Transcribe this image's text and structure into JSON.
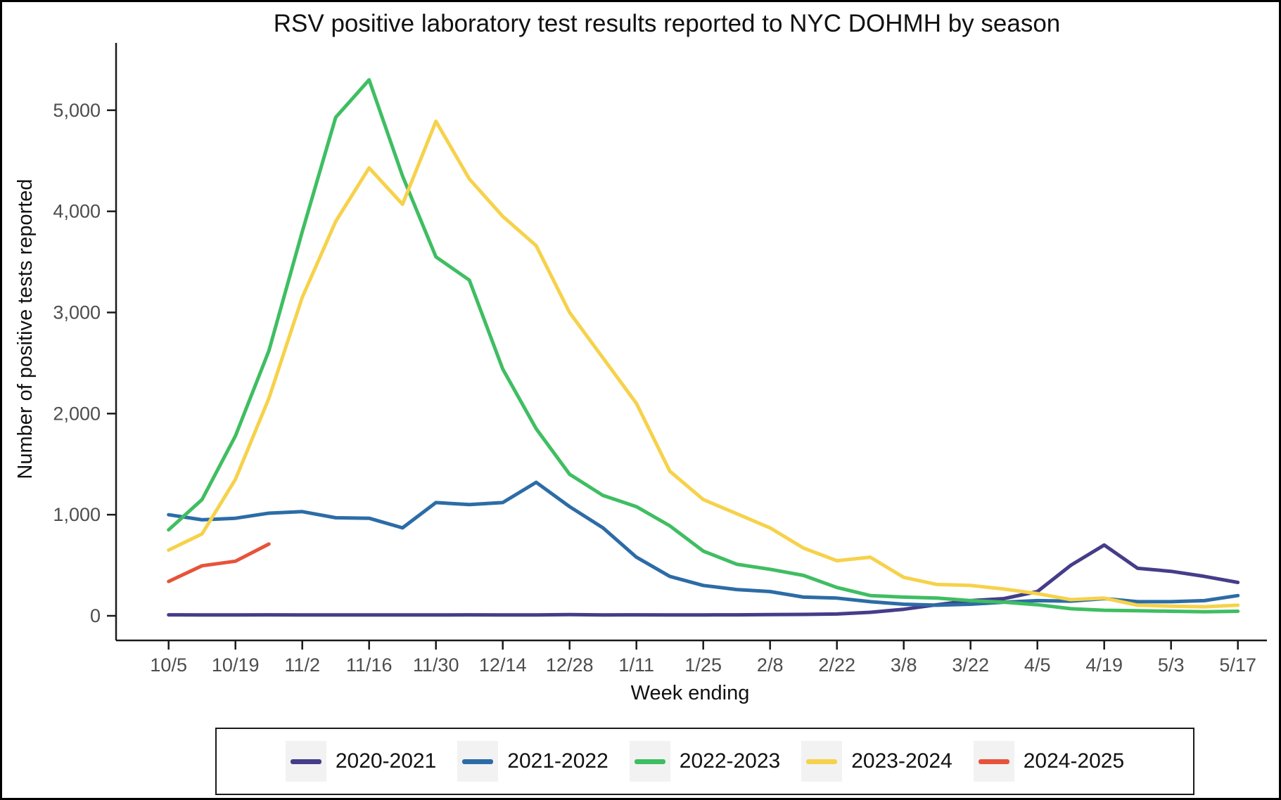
{
  "title": "RSV positive laboratory test results reported to NYC DOHMH by season",
  "chart_data": {
    "type": "line",
    "title": "RSV positive laboratory test results reported to NYC DOHMH by season",
    "xlabel": "Week ending",
    "ylabel": "Number of positive tests reported",
    "legend_position": "bottom",
    "grid": false,
    "ylim": [
      0,
      5450
    ],
    "y_ticks": [
      {
        "value": 0,
        "label": "0"
      },
      {
        "value": 1000,
        "label": "1,000"
      },
      {
        "value": 2000,
        "label": "2,000"
      },
      {
        "value": 3000,
        "label": "3,000"
      },
      {
        "value": 4000,
        "label": "4,000"
      },
      {
        "value": 5000,
        "label": "5,000"
      }
    ],
    "weeks": [
      "10/5",
      "10/12",
      "10/19",
      "10/26",
      "11/2",
      "11/9",
      "11/16",
      "11/23",
      "11/30",
      "12/7",
      "12/14",
      "12/21",
      "12/28",
      "1/4",
      "1/11",
      "1/18",
      "1/25",
      "2/1",
      "2/8",
      "2/15",
      "2/22",
      "3/1",
      "3/8",
      "3/15",
      "3/22",
      "3/29",
      "4/5",
      "4/12",
      "4/19",
      "4/26",
      "5/3",
      "5/10",
      "5/17"
    ],
    "x_tick_every": 2,
    "x_tick_labels": [
      "10/5",
      "10/19",
      "11/2",
      "11/16",
      "11/30",
      "12/14",
      "12/28",
      "1/11",
      "1/25",
      "2/8",
      "2/22",
      "3/8",
      "3/22",
      "4/5",
      "4/19",
      "5/3",
      "5/17"
    ],
    "series": [
      {
        "name": "2020-2021",
        "color": "#453d89",
        "values": [
          10,
          8,
          8,
          10,
          9,
          8,
          8,
          9,
          8,
          10,
          9,
          8,
          12,
          8,
          10,
          8,
          9,
          10,
          12,
          14,
          18,
          35,
          65,
          110,
          150,
          170,
          240,
          500,
          700,
          470,
          440,
          390,
          330
        ]
      },
      {
        "name": "2021-2022",
        "color": "#2c6ca6",
        "values": [
          1000,
          950,
          965,
          1015,
          1030,
          970,
          965,
          870,
          1120,
          1100,
          1120,
          1320,
          1080,
          870,
          580,
          390,
          300,
          260,
          240,
          185,
          175,
          140,
          115,
          105,
          115,
          135,
          150,
          145,
          170,
          140,
          140,
          150,
          200
        ]
      },
      {
        "name": "2022-2023",
        "color": "#3fbe62",
        "values": [
          850,
          1150,
          1780,
          2620,
          3800,
          4930,
          5300,
          4350,
          3550,
          3320,
          2440,
          1850,
          1400,
          1190,
          1080,
          890,
          640,
          510,
          460,
          400,
          280,
          200,
          185,
          175,
          150,
          135,
          110,
          70,
          55,
          50,
          45,
          40,
          45
        ]
      },
      {
        "name": "2023-2024",
        "color": "#f6d24b",
        "values": [
          650,
          810,
          1350,
          2150,
          3150,
          3900,
          4430,
          4070,
          4890,
          4320,
          3950,
          3660,
          3000,
          2550,
          2100,
          1430,
          1150,
          1010,
          870,
          670,
          545,
          580,
          380,
          310,
          300,
          265,
          220,
          160,
          175,
          105,
          95,
          90,
          105
        ]
      },
      {
        "name": "2024-2025",
        "color": "#e7533a",
        "values": [
          340,
          495,
          540,
          710
        ]
      }
    ],
    "colors": {
      "axis": "#1a1a1a",
      "tick_label": "#4d4d4d",
      "legend_key_bg": "#f2f2f2",
      "legend_border": "#1a1a1a",
      "background": "#ffffff"
    }
  }
}
